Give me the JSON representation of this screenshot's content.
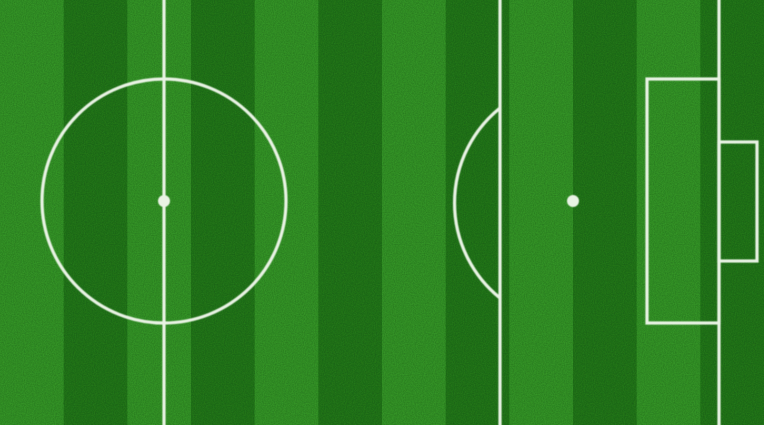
{
  "scene": {
    "subject": "soccer-pitch",
    "surface": "grass",
    "stripe_count": 12,
    "markings": [
      "halfway-line",
      "center-circle",
      "center-spot",
      "penalty-arc",
      "penalty-spot",
      "penalty-area",
      "goal-area",
      "goal-line"
    ]
  },
  "colors": {
    "grass_light": "#38a02a",
    "grass_dark": "#25801c",
    "line": "#e9f3e4"
  }
}
